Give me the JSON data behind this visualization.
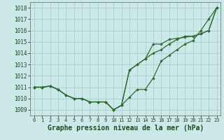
{
  "title": "Graphe pression niveau de la mer (hPa)",
  "background_color": "#cce8e8",
  "grid_color": "#99cccc",
  "line_color": "#2d6e2d",
  "marker_color": "#2d6e2d",
  "xlim": [
    -0.5,
    23.5
  ],
  "ylim": [
    1008.5,
    1018.5
  ],
  "yticks": [
    1009,
    1010,
    1011,
    1012,
    1013,
    1014,
    1015,
    1016,
    1017,
    1018
  ],
  "xticks": [
    0,
    1,
    2,
    3,
    4,
    5,
    6,
    7,
    8,
    9,
    10,
    11,
    12,
    13,
    14,
    15,
    16,
    17,
    18,
    19,
    20,
    21,
    22,
    23
  ],
  "series": [
    [
      1011.0,
      1011.0,
      1011.1,
      1010.8,
      1010.3,
      1010.0,
      1010.0,
      1009.7,
      1009.7,
      1009.7,
      1009.0,
      1009.4,
      1010.1,
      1010.8,
      1010.8,
      1011.8,
      1013.3,
      1013.8,
      1014.3,
      1014.8,
      1015.1,
      1016.0,
      1017.0,
      1018.0
    ],
    [
      1011.0,
      1011.0,
      1011.1,
      1010.8,
      1010.3,
      1010.0,
      1010.0,
      1009.7,
      1009.7,
      1009.7,
      1009.0,
      1009.4,
      1012.5,
      1013.0,
      1013.5,
      1014.0,
      1014.3,
      1014.8,
      1015.2,
      1015.5,
      1015.5,
      1015.7,
      1016.0,
      1018.0
    ],
    [
      1011.0,
      1011.0,
      1011.1,
      1010.8,
      1010.3,
      1010.0,
      1010.0,
      1009.7,
      1009.7,
      1009.7,
      1009.0,
      1009.4,
      1012.5,
      1013.0,
      1013.5,
      1014.8,
      1014.8,
      1015.2,
      1015.3,
      1015.4,
      1015.5,
      1015.7,
      1016.0,
      1018.0
    ]
  ],
  "xlabel_fontsize": 7.0,
  "xtick_fontsize": 5.0,
  "ytick_fontsize": 5.5
}
